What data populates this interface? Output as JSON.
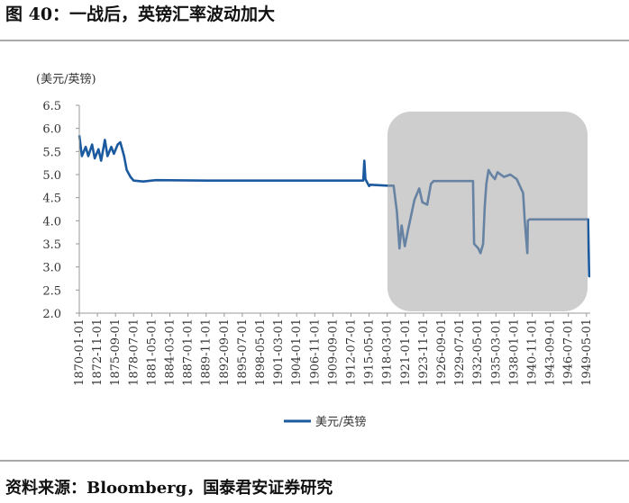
{
  "chart_data": {
    "type": "line",
    "title": "图 40：一战后，英镑汇率波动加大",
    "y_label": "(美元/英镑)",
    "source": "资料来源：Bloomberg，国泰君安证券研究",
    "x": [
      "1870-01-01",
      "1870-06-01",
      "1871-01-01",
      "1871-06-01",
      "1872-01-01",
      "1872-06-01",
      "1873-01-01",
      "1873-06-01",
      "1874-01-01",
      "1874-06-01",
      "1875-01-01",
      "1875-06-01",
      "1876-01-01",
      "1876-06-01",
      "1877-01-01",
      "1877-06-01",
      "1878-01-01",
      "1878-07-01",
      "1880-01-01",
      "1882-01-01",
      "1890-01-01",
      "1900-01-01",
      "1914-06-01",
      "1914-08-01",
      "1914-10-01",
      "1915-05-01",
      "1915-07-01",
      "1918-03-01",
      "1919-03-01",
      "1919-09-01",
      "1920-02-01",
      "1920-06-01",
      "1920-12-01",
      "1921-06-01",
      "1922-06-01",
      "1923-03-01",
      "1923-09-01",
      "1924-06-01",
      "1925-01-01",
      "1925-06-01",
      "1930-01-01",
      "1931-08-01",
      "1931-10-01",
      "1932-06-01",
      "1932-10-01",
      "1933-03-01",
      "1933-06-01",
      "1933-09-01",
      "1934-01-01",
      "1934-06-01",
      "1935-01-01",
      "1935-06-01",
      "1936-06-01",
      "1937-06-01",
      "1938-06-01",
      "1939-06-01",
      "1939-09-01",
      "1940-02-01",
      "1940-03-01",
      "1940-06-01",
      "1949-08-01",
      "1949-10-01",
      "1949-12-01"
    ],
    "series": [
      {
        "name": "美元/英镑",
        "color": "#1c5aa0",
        "values": [
          5.85,
          5.4,
          5.6,
          5.4,
          5.65,
          5.35,
          5.55,
          5.3,
          5.75,
          5.4,
          5.6,
          5.45,
          5.65,
          5.7,
          5.4,
          5.1,
          4.95,
          4.87,
          4.85,
          4.88,
          4.87,
          4.87,
          4.87,
          5.3,
          4.9,
          4.75,
          4.78,
          4.76,
          4.76,
          4.2,
          3.4,
          3.9,
          3.45,
          3.8,
          4.45,
          4.7,
          4.4,
          4.35,
          4.8,
          4.86,
          4.86,
          4.86,
          3.5,
          3.4,
          3.3,
          3.5,
          4.3,
          4.8,
          5.1,
          5.0,
          4.9,
          5.05,
          4.95,
          5.0,
          4.9,
          4.6,
          4.0,
          3.3,
          4.0,
          4.03,
          4.03,
          2.8,
          2.8
        ]
      }
    ],
    "xlim": [
      "1870-01-01",
      "1949-12-01"
    ],
    "xticks": [
      "1870-01-01",
      "1872-11-01",
      "1875-09-01",
      "1878-07-01",
      "1881-05-01",
      "1884-03-01",
      "1887-01-01",
      "1889-11-01",
      "1892-09-01",
      "1895-07-01",
      "1898-05-01",
      "1901-03-01",
      "1904-01-01",
      "1906-11-01",
      "1909-09-01",
      "1912-07-01",
      "1915-05-01",
      "1918-03-01",
      "1921-01-01",
      "1923-11-01",
      "1926-09-01",
      "1929-07-01",
      "1932-05-01",
      "1935-03-01",
      "1938-01-01",
      "1940-11-01",
      "1943-09-01",
      "1946-07-01",
      "1949-05-01"
    ],
    "ylim": [
      2,
      6.5
    ],
    "yticks": [
      {
        "value": 2,
        "label": "2.0"
      },
      {
        "value": 2.5,
        "label": "2.5"
      },
      {
        "value": 3,
        "label": "3.0"
      },
      {
        "value": 3.5,
        "label": "3.5"
      },
      {
        "value": 4,
        "label": "4.0"
      },
      {
        "value": 4.5,
        "label": "4.5"
      },
      {
        "value": 5,
        "label": "5.0"
      },
      {
        "value": 5.5,
        "label": "5.5"
      },
      {
        "value": 6,
        "label": "6.0"
      },
      {
        "value": 6.5,
        "label": "6.5"
      }
    ]
  }
}
